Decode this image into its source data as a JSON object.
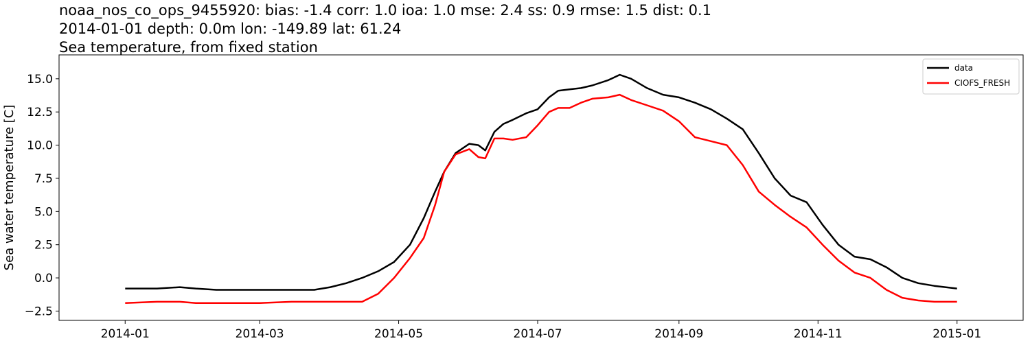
{
  "chart_data": {
    "type": "line",
    "title_lines": [
      "noaa_nos_co_ops_9455920: bias: -1.4  corr: 1.0  ioa: 1.0  mse: 2.4  ss: 0.9  rmse: 1.5  dist: 0.1",
      "2014-01-01 depth: 0.0m lon: -149.89 lat: 61.24",
      "Sea temperature, from fixed station"
    ],
    "xlabel": "",
    "ylabel": "Sea water temperature [C]",
    "xlim": [
      "2013-12-03",
      "2015-01-30"
    ],
    "ylim": [
      -3.2,
      16.8
    ],
    "x_ticks": [
      "2014-01",
      "2014-03",
      "2014-05",
      "2014-07",
      "2014-09",
      "2014-11",
      "2015-01"
    ],
    "y_ticks": [
      -2.5,
      0.0,
      2.5,
      5.0,
      7.5,
      10.0,
      12.5,
      15.0
    ],
    "y_tick_labels": [
      "−2.5",
      "0.0",
      "2.5",
      "5.0",
      "7.5",
      "10.0",
      "12.5",
      "15.0"
    ],
    "legend_position": "top-right",
    "series": [
      {
        "name": "data",
        "color": "#000000",
        "x": [
          "2014-01-01",
          "2014-01-15",
          "2014-01-25",
          "2014-02-01",
          "2014-02-10",
          "2014-02-20",
          "2014-03-01",
          "2014-03-15",
          "2014-03-25",
          "2014-04-01",
          "2014-04-08",
          "2014-04-15",
          "2014-04-22",
          "2014-04-29",
          "2014-05-06",
          "2014-05-12",
          "2014-05-17",
          "2014-05-21",
          "2014-05-26",
          "2014-06-01",
          "2014-06-05",
          "2014-06-08",
          "2014-06-12",
          "2014-06-16",
          "2014-06-20",
          "2014-06-26",
          "2014-07-01",
          "2014-07-06",
          "2014-07-10",
          "2014-07-15",
          "2014-07-20",
          "2014-07-25",
          "2014-08-01",
          "2014-08-06",
          "2014-08-11",
          "2014-08-18",
          "2014-08-25",
          "2014-09-01",
          "2014-09-08",
          "2014-09-15",
          "2014-09-22",
          "2014-09-29",
          "2014-10-06",
          "2014-10-13",
          "2014-10-20",
          "2014-10-27",
          "2014-11-03",
          "2014-11-10",
          "2014-11-17",
          "2014-11-24",
          "2014-12-01",
          "2014-12-08",
          "2014-12-15",
          "2014-12-22",
          "2015-01-01"
        ],
        "y": [
          -0.8,
          -0.8,
          -0.7,
          -0.8,
          -0.9,
          -0.9,
          -0.9,
          -0.9,
          -0.9,
          -0.7,
          -0.4,
          0.0,
          0.5,
          1.2,
          2.5,
          4.5,
          6.5,
          8.0,
          9.4,
          10.1,
          10.0,
          9.6,
          11.0,
          11.6,
          11.9,
          12.4,
          12.7,
          13.6,
          14.1,
          14.2,
          14.3,
          14.5,
          14.9,
          15.3,
          15.0,
          14.3,
          13.8,
          13.6,
          13.2,
          12.7,
          12.0,
          11.2,
          9.4,
          7.5,
          6.2,
          5.7,
          4.0,
          2.5,
          1.6,
          1.4,
          0.8,
          0.0,
          -0.4,
          -0.6,
          -0.8
        ]
      },
      {
        "name": "CIOFS_FRESH",
        "color": "#ff0000",
        "x": [
          "2014-01-01",
          "2014-01-15",
          "2014-01-25",
          "2014-02-01",
          "2014-02-10",
          "2014-02-20",
          "2014-03-01",
          "2014-03-15",
          "2014-03-25",
          "2014-04-01",
          "2014-04-08",
          "2014-04-15",
          "2014-04-22",
          "2014-04-29",
          "2014-05-06",
          "2014-05-12",
          "2014-05-17",
          "2014-05-21",
          "2014-05-26",
          "2014-06-01",
          "2014-06-05",
          "2014-06-08",
          "2014-06-12",
          "2014-06-16",
          "2014-06-20",
          "2014-06-26",
          "2014-07-01",
          "2014-07-06",
          "2014-07-10",
          "2014-07-15",
          "2014-07-20",
          "2014-07-25",
          "2014-08-01",
          "2014-08-06",
          "2014-08-11",
          "2014-08-18",
          "2014-08-25",
          "2014-09-01",
          "2014-09-08",
          "2014-09-15",
          "2014-09-22",
          "2014-09-29",
          "2014-10-06",
          "2014-10-13",
          "2014-10-20",
          "2014-10-27",
          "2014-11-03",
          "2014-11-10",
          "2014-11-17",
          "2014-11-24",
          "2014-12-01",
          "2014-12-08",
          "2014-12-15",
          "2014-12-22",
          "2015-01-01"
        ],
        "y": [
          -1.9,
          -1.8,
          -1.8,
          -1.9,
          -1.9,
          -1.9,
          -1.9,
          -1.8,
          -1.8,
          -1.8,
          -1.8,
          -1.8,
          -1.2,
          0.0,
          1.5,
          3.0,
          5.5,
          8.0,
          9.3,
          9.7,
          9.1,
          9.0,
          10.5,
          10.5,
          10.4,
          10.6,
          11.5,
          12.5,
          12.8,
          12.8,
          13.2,
          13.5,
          13.6,
          13.8,
          13.4,
          13.0,
          12.6,
          11.8,
          10.6,
          10.3,
          10.0,
          8.5,
          6.5,
          5.5,
          4.6,
          3.8,
          2.5,
          1.3,
          0.4,
          0.0,
          -0.9,
          -1.5,
          -1.7,
          -1.8,
          -1.8
        ]
      }
    ]
  }
}
